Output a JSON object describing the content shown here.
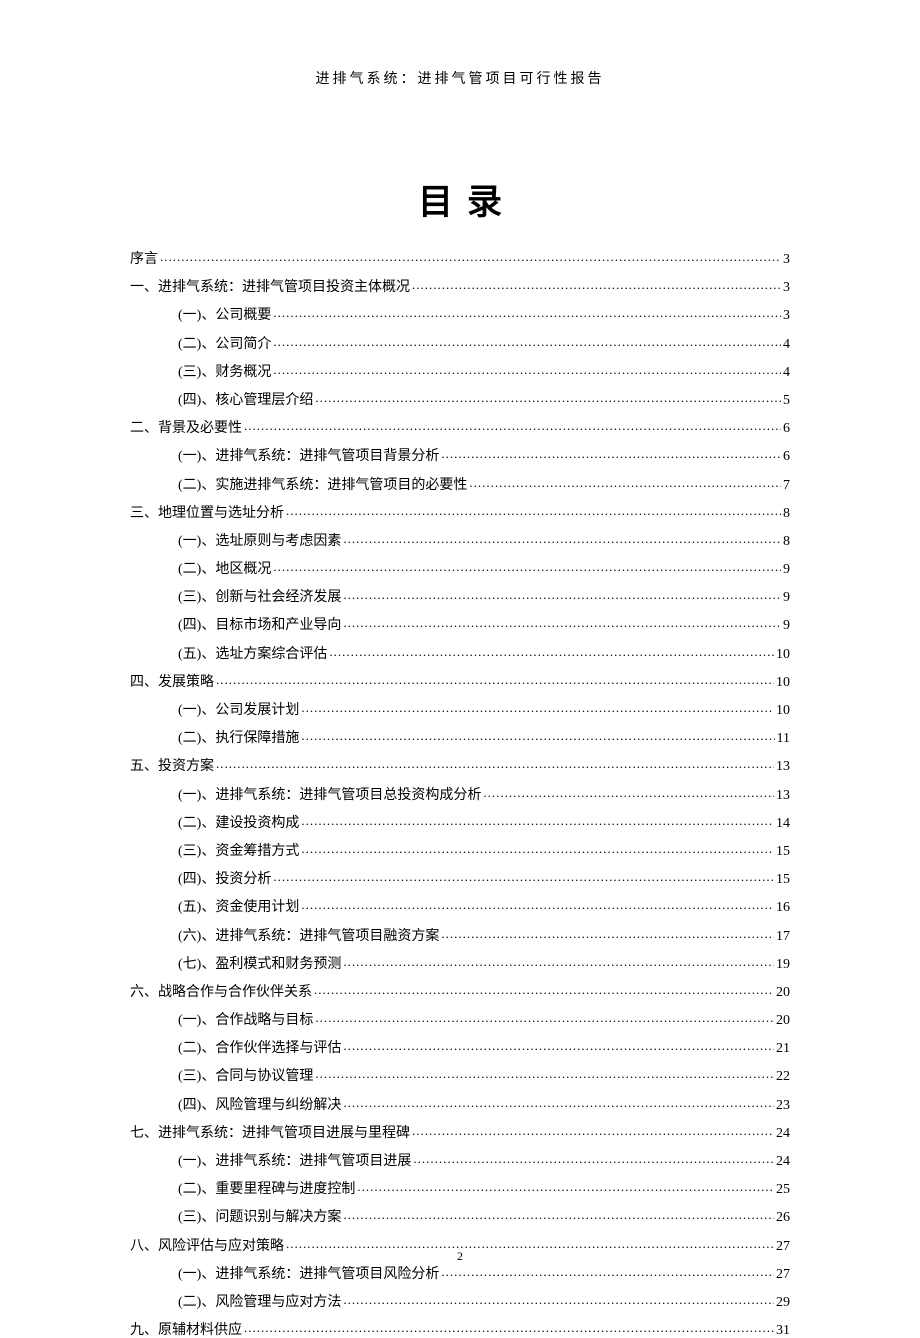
{
  "header_text": "进排气系统：进排气管项目可行性报告",
  "title": "目录",
  "page_number": "2",
  "colors": {
    "background": "#ffffff",
    "text": "#000000"
  },
  "typography": {
    "header_fontsize": 14,
    "title_fontsize": 35,
    "toc_fontsize": 14,
    "pagenum_fontsize": 12,
    "font_family": "SimSun"
  },
  "toc": [
    {
      "level": 1,
      "label": "序言",
      "page": "3"
    },
    {
      "level": 1,
      "label": "一、进排气系统：进排气管项目投资主体概况",
      "page": "3"
    },
    {
      "level": 2,
      "label": "(一)、公司概要",
      "page": "3"
    },
    {
      "level": 2,
      "label": "(二)、公司简介",
      "page": "4"
    },
    {
      "level": 2,
      "label": "(三)、财务概况",
      "page": "4"
    },
    {
      "level": 2,
      "label": "(四)、核心管理层介绍",
      "page": "5"
    },
    {
      "level": 1,
      "label": "二、背景及必要性",
      "page": "6"
    },
    {
      "level": 2,
      "label": "(一)、进排气系统：进排气管项目背景分析",
      "page": "6"
    },
    {
      "level": 2,
      "label": "(二)、实施进排气系统：进排气管项目的必要性",
      "page": "7"
    },
    {
      "level": 1,
      "label": "三、地理位置与选址分析",
      "page": "8"
    },
    {
      "level": 2,
      "label": "(一)、选址原则与考虑因素",
      "page": "8"
    },
    {
      "level": 2,
      "label": "(二)、地区概况",
      "page": "9"
    },
    {
      "level": 2,
      "label": "(三)、创新与社会经济发展",
      "page": "9"
    },
    {
      "level": 2,
      "label": "(四)、目标市场和产业导向",
      "page": "9"
    },
    {
      "level": 2,
      "label": "(五)、选址方案综合评估",
      "page": "10"
    },
    {
      "level": 1,
      "label": "四、发展策略",
      "page": "10"
    },
    {
      "level": 2,
      "label": "(一)、公司发展计划",
      "page": "10"
    },
    {
      "level": 2,
      "label": "(二)、执行保障措施",
      "page": "11"
    },
    {
      "level": 1,
      "label": "五、投资方案",
      "page": "13"
    },
    {
      "level": 2,
      "label": "(一)、进排气系统：进排气管项目总投资构成分析",
      "page": "13"
    },
    {
      "level": 2,
      "label": "(二)、建设投资构成",
      "page": "14"
    },
    {
      "level": 2,
      "label": "(三)、资金筹措方式",
      "page": "15"
    },
    {
      "level": 2,
      "label": "(四)、投资分析",
      "page": "15"
    },
    {
      "level": 2,
      "label": "(五)、资金使用计划",
      "page": "16"
    },
    {
      "level": 2,
      "label": "(六)、进排气系统：进排气管项目融资方案",
      "page": "17"
    },
    {
      "level": 2,
      "label": "(七)、盈利模式和财务预测",
      "page": "19"
    },
    {
      "level": 1,
      "label": "六、战略合作与合作伙伴关系",
      "page": "20"
    },
    {
      "level": 2,
      "label": "(一)、合作战略与目标",
      "page": "20"
    },
    {
      "level": 2,
      "label": "(二)、合作伙伴选择与评估",
      "page": "21"
    },
    {
      "level": 2,
      "label": "(三)、合同与协议管理",
      "page": "22"
    },
    {
      "level": 2,
      "label": "(四)、风险管理与纠纷解决",
      "page": "23"
    },
    {
      "level": 1,
      "label": "七、进排气系统：进排气管项目进展与里程碑",
      "page": "24"
    },
    {
      "level": 2,
      "label": "(一)、进排气系统：进排气管项目进展",
      "page": "24"
    },
    {
      "level": 2,
      "label": "(二)、重要里程碑与进度控制",
      "page": "25"
    },
    {
      "level": 2,
      "label": "(三)、问题识别与解决方案",
      "page": "26"
    },
    {
      "level": 1,
      "label": "八、风险评估与应对策略",
      "page": "27"
    },
    {
      "level": 2,
      "label": "(一)、进排气系统：进排气管项目风险分析",
      "page": "27"
    },
    {
      "level": 2,
      "label": "(二)、风险管理与应对方法",
      "page": "29"
    },
    {
      "level": 1,
      "label": "九、原辅材料供应",
      "page": "31"
    }
  ]
}
